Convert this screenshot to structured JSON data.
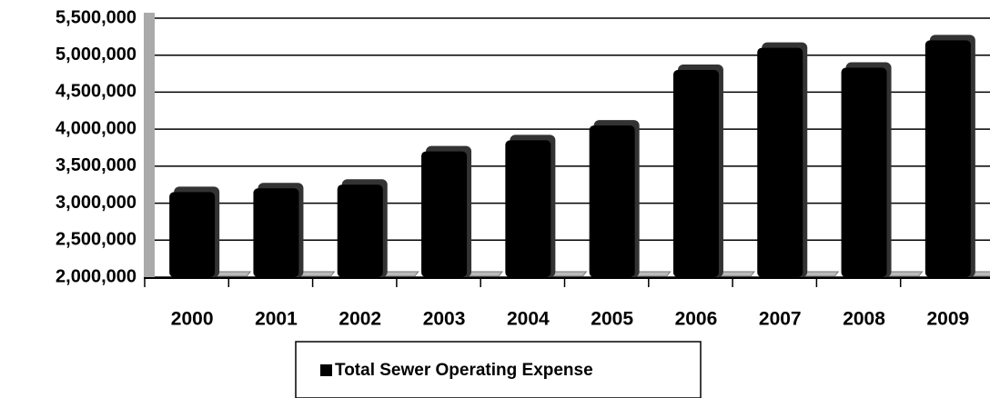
{
  "chart_data": {
    "type": "bar",
    "categories": [
      "2000",
      "2001",
      "2002",
      "2003",
      "2004",
      "2005",
      "2006",
      "2007",
      "2008",
      "2009"
    ],
    "series": [
      {
        "name": "Total Sewer Operating Expense",
        "color": "#000000",
        "values": [
          3150000,
          3200000,
          3250000,
          3700000,
          3850000,
          4050000,
          4800000,
          5100000,
          4830000,
          5200000
        ]
      }
    ],
    "ylim": [
      2000000,
      5500000
    ],
    "yticks": [
      {
        "value": 2000000,
        "label": "2,000,000"
      },
      {
        "value": 2500000,
        "label": "2,500,000"
      },
      {
        "value": 3000000,
        "label": "3,000,000"
      },
      {
        "value": 3500000,
        "label": "3,500,000"
      },
      {
        "value": 4000000,
        "label": "4,000,000"
      },
      {
        "value": 4500000,
        "label": "4,500,000"
      },
      {
        "value": 5000000,
        "label": "5,000,000"
      },
      {
        "value": 5500000,
        "label": "5,500,000"
      }
    ],
    "grid": true,
    "legend": "bottom"
  }
}
